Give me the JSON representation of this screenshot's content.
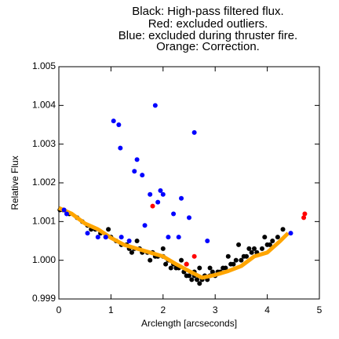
{
  "chart_data": {
    "type": "scatter",
    "title": [
      "Black: High-pass filtered flux.",
      "Red: excluded outliers.",
      "Blue: excluded during thruster fire.",
      "Orange: Correction."
    ],
    "xlabel": "Arclength [arcseconds]",
    "ylabel": "Relative Flux",
    "xlim": [
      0,
      5
    ],
    "ylim": [
      0.999,
      1.005
    ],
    "xticks": [
      0,
      1,
      2,
      3,
      4,
      5
    ],
    "yticks": [
      0.999,
      {
        "value": 1.0,
        "label": "1.000"
      },
      1.001,
      1.002,
      1.003,
      1.004,
      1.005
    ],
    "series": [
      {
        "name": "High-pass filtered flux",
        "color": "#000000",
        "x": [
          0.02,
          0.08,
          0.2,
          0.35,
          0.45,
          0.55,
          0.62,
          0.7,
          0.8,
          0.9,
          1.0,
          1.1,
          1.2,
          1.3,
          1.35,
          1.45,
          1.55,
          1.6,
          1.7,
          1.8,
          1.85,
          1.9,
          2.0,
          2.05,
          2.1,
          2.2,
          2.25,
          2.3,
          2.4,
          2.45,
          2.5,
          2.55,
          2.6,
          2.65,
          2.7,
          2.75,
          2.8,
          2.85,
          2.9,
          2.95,
          3.0,
          3.05,
          3.1,
          3.15,
          3.2,
          3.3,
          3.35,
          3.4,
          3.5,
          3.55,
          3.6,
          3.7,
          3.75,
          3.8,
          3.9,
          4.0,
          4.05,
          4.1,
          4.2,
          4.3,
          1.4,
          1.75,
          2.15,
          2.35,
          2.6,
          3.25,
          3.65,
          2.0,
          1.5,
          0.95,
          2.9,
          3.45,
          3.95,
          2.7,
          2.45
        ],
        "values": [
          1.0013,
          1.0013,
          1.0012,
          1.0011,
          1.001,
          1.0009,
          1.0008,
          1.0008,
          1.0007,
          1.0006,
          1.0006,
          1.0005,
          1.0004,
          1.0004,
          1.0003,
          1.0003,
          1.0003,
          1.0002,
          1.0002,
          1.0002,
          1.0001,
          1.0001,
          1.0001,
          0.9999,
          1.0,
          0.9999,
          0.9998,
          0.9998,
          0.9997,
          0.9996,
          0.9996,
          0.9995,
          0.9996,
          0.9995,
          0.9994,
          0.9995,
          0.9996,
          0.9995,
          0.9996,
          0.9997,
          0.9996,
          0.9997,
          0.9997,
          0.9998,
          0.9998,
          0.9999,
          0.9999,
          1.0,
          1.0,
          1.0001,
          1.0001,
          1.0002,
          1.0003,
          1.0002,
          1.0003,
          1.0004,
          1.0004,
          1.0005,
          1.0006,
          1.0008,
          1.0002,
          1.0,
          0.9998,
          1.0,
          0.9997,
          1.0001,
          1.0003,
          1.0003,
          1.0005,
          1.0008,
          0.9998,
          1.0004,
          1.0006,
          0.9998,
          0.9999
        ]
      },
      {
        "name": "Correction",
        "color": "#ffa500",
        "x": [
          0,
          0.25,
          0.5,
          0.75,
          1,
          1.25,
          1.5,
          1.75,
          2,
          2.25,
          2.5,
          2.75,
          3,
          3.25,
          3.5,
          3.75,
          4,
          4.25,
          4.4
        ],
        "values": [
          1.00135,
          1.0012,
          1.00095,
          1.0008,
          1.00058,
          1.0004,
          1.0003,
          1.0002,
          1.0001,
          0.9999,
          0.99972,
          0.99955,
          0.99962,
          0.99972,
          0.99985,
          1.0001,
          1.0002,
          1.0005,
          1.0007
        ]
      },
      {
        "name": "Excluded outliers",
        "color": "#ff0000",
        "x": [
          1.8,
          2.45,
          2.6,
          4.7,
          4.72
        ],
        "values": [
          1.0014,
          0.9999,
          1.0001,
          1.0011,
          1.0012
        ]
      },
      {
        "name": "Excluded during thruster fire",
        "color": "#0000ff",
        "x": [
          1.05,
          1.15,
          1.85,
          2.6,
          1.18,
          1.5,
          1.45,
          1.6,
          1.95,
          2.0,
          1.75,
          1.9,
          2.35,
          2.2,
          2.5,
          1.65,
          1.2,
          1.35,
          2.3,
          2.1,
          2.85,
          0.1,
          0.15,
          0.55,
          0.75,
          0.9,
          4.45
        ],
        "values": [
          1.0036,
          1.0035,
          1.004,
          1.0033,
          1.0029,
          1.0026,
          1.0023,
          1.0022,
          1.0018,
          1.0017,
          1.0017,
          1.0015,
          1.0016,
          1.0012,
          1.0011,
          1.0009,
          1.0006,
          1.0005,
          1.0006,
          1.0006,
          1.0005,
          1.0013,
          1.0012,
          1.0007,
          1.0006,
          1.0006,
          1.0007
        ]
      }
    ]
  }
}
